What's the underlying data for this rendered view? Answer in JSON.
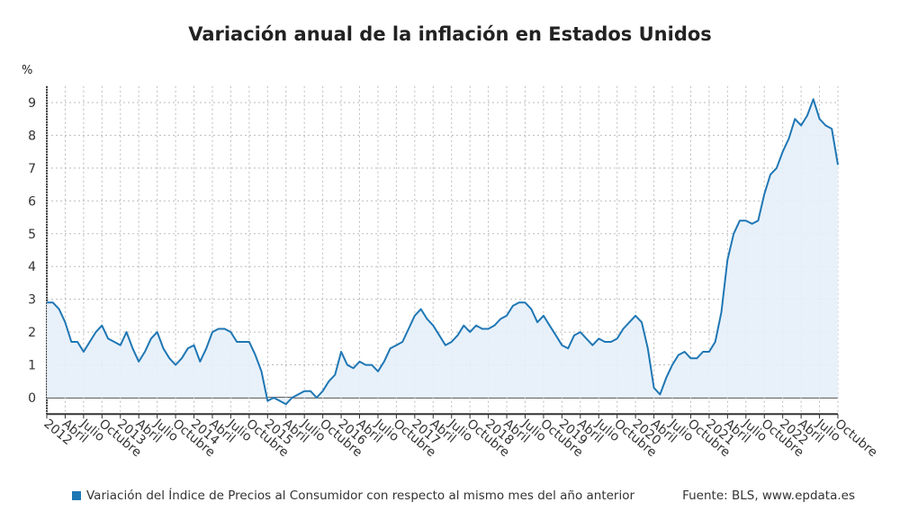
{
  "chart_data": {
    "type": "area",
    "title": "Variación anual de la inflación en Estados Unidos",
    "ylabel": "%",
    "ylim": [
      -0.5,
      9.5
    ],
    "yticks": [
      0,
      1,
      2,
      3,
      4,
      5,
      6,
      7,
      8,
      9
    ],
    "grid": true,
    "legend_position": "bottom-left",
    "line_color": "#1f77b4",
    "fill_color": "#e6f0f9",
    "x_start": "2012-01",
    "x_end": "2022-10",
    "x_tick_labels": [
      "2012",
      "Abril",
      "Julio",
      "Octubre",
      "2013",
      "Abril",
      "Julio",
      "Octubre",
      "2014",
      "Abril",
      "Julio",
      "Octubre",
      "2015",
      "Abril",
      "Julio",
      "Octubre",
      "2016",
      "Abril",
      "Julio",
      "Octubre",
      "2017",
      "Abril",
      "Julio",
      "Octubre",
      "2018",
      "Abril",
      "Julio",
      "Octubre",
      "2019",
      "Abril",
      "Julio",
      "Octubre",
      "2020",
      "Abril",
      "Julio",
      "Octubre",
      "2021",
      "Abril",
      "Julio",
      "Octubre",
      "2022",
      "Abril",
      "Julio",
      "Octubre"
    ],
    "series": [
      {
        "name": "Variación del Índice de Precios al Consumidor con respecto al mismo mes del año anterior",
        "values": [
          2.9,
          2.9,
          2.7,
          2.3,
          1.7,
          1.7,
          1.4,
          1.7,
          2.0,
          2.2,
          1.8,
          1.7,
          1.6,
          2.0,
          1.5,
          1.1,
          1.4,
          1.8,
          2.0,
          1.5,
          1.2,
          1.0,
          1.2,
          1.5,
          1.6,
          1.1,
          1.5,
          2.0,
          2.1,
          2.1,
          2.0,
          1.7,
          1.7,
          1.7,
          1.3,
          0.8,
          -0.1,
          0.0,
          -0.1,
          -0.2,
          0.0,
          0.1,
          0.2,
          0.2,
          0.0,
          0.2,
          0.5,
          0.7,
          1.4,
          1.0,
          0.9,
          1.1,
          1.0,
          1.0,
          0.8,
          1.1,
          1.5,
          1.6,
          1.7,
          2.1,
          2.5,
          2.7,
          2.4,
          2.2,
          1.9,
          1.6,
          1.7,
          1.9,
          2.2,
          2.0,
          2.2,
          2.1,
          2.1,
          2.2,
          2.4,
          2.5,
          2.8,
          2.9,
          2.9,
          2.7,
          2.3,
          2.5,
          2.2,
          1.9,
          1.6,
          1.5,
          1.9,
          2.0,
          1.8,
          1.6,
          1.8,
          1.7,
          1.7,
          1.8,
          2.1,
          2.3,
          2.5,
          2.3,
          1.5,
          0.3,
          0.1,
          0.6,
          1.0,
          1.3,
          1.4,
          1.2,
          1.2,
          1.4,
          1.4,
          1.7,
          2.6,
          4.2,
          5.0,
          5.4,
          5.4,
          5.3,
          5.4,
          6.2,
          6.8,
          7.0,
          7.5,
          7.9,
          8.5,
          8.3,
          8.6,
          9.1,
          8.5,
          8.3,
          8.2,
          7.1
        ]
      }
    ]
  },
  "source": "Fuente: BLS, www.epdata.es"
}
